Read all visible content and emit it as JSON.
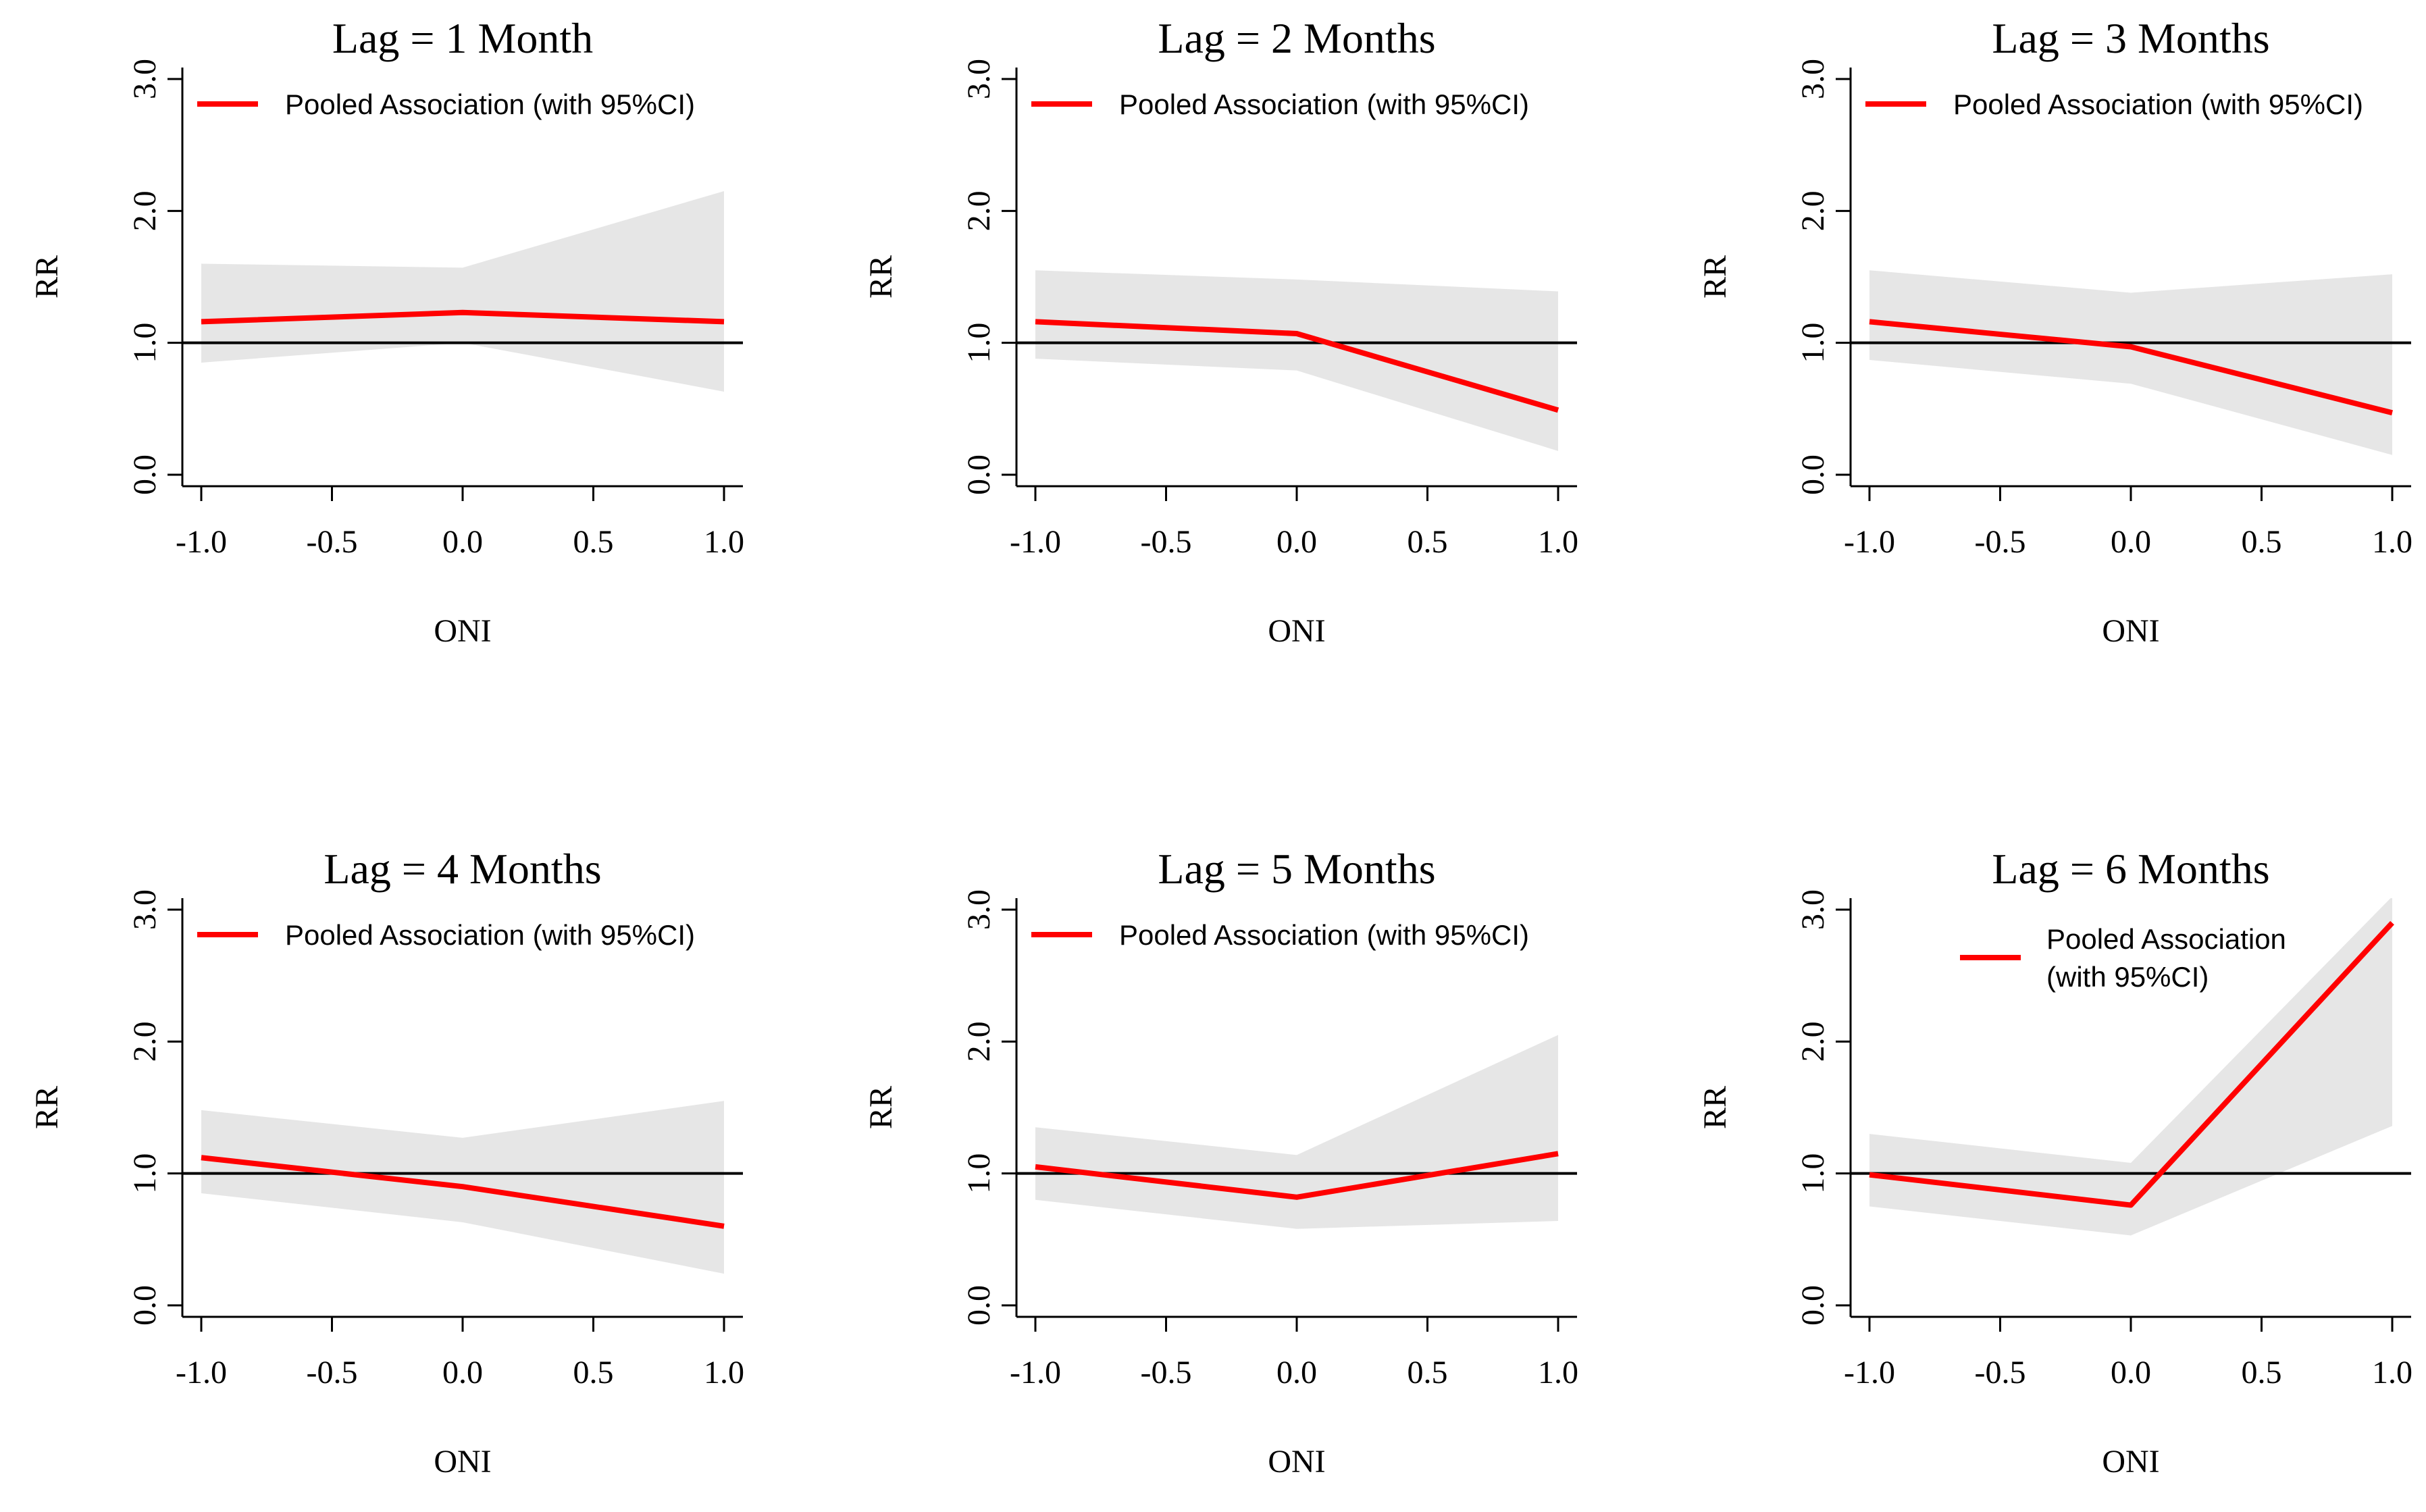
{
  "colors": {
    "series_line": "#ff0000",
    "ci_band": "#e6e6e6",
    "reference_line": "#000000",
    "axis": "#000000"
  },
  "chart_data": [
    {
      "type": "line",
      "title": "Lag =  1 Month",
      "xlabel": "ONI",
      "ylabel": "RR",
      "xlim": [
        -1.0,
        1.0
      ],
      "ylim": [
        0.0,
        3.0
      ],
      "xticks": [
        "-1.0",
        "-0.5",
        "0.0",
        "0.5",
        "1.0"
      ],
      "yticks": [
        "0.0",
        "1.0",
        "2.0",
        "3.0"
      ],
      "legend": [
        "Pooled Association (with 95%CI)"
      ],
      "x": [
        -1.0,
        0.0,
        1.0
      ],
      "rr": [
        1.16,
        1.23,
        1.16
      ],
      "ci_lower": [
        0.85,
        1.0,
        0.63
      ],
      "ci_upper": [
        1.6,
        1.57,
        2.15
      ],
      "reference": 1.0
    },
    {
      "type": "line",
      "title": "Lag =  2 Months",
      "xlabel": "ONI",
      "ylabel": "RR",
      "xlim": [
        -1.0,
        1.0
      ],
      "ylim": [
        0.0,
        3.0
      ],
      "xticks": [
        "-1.0",
        "-0.5",
        "0.0",
        "0.5",
        "1.0"
      ],
      "yticks": [
        "0.0",
        "1.0",
        "2.0",
        "3.0"
      ],
      "legend": [
        "Pooled Association (with 95%CI)"
      ],
      "x": [
        -1.0,
        0.0,
        1.0
      ],
      "rr": [
        1.16,
        1.07,
        0.49
      ],
      "ci_lower": [
        0.88,
        0.79,
        0.18
      ],
      "ci_upper": [
        1.55,
        1.48,
        1.39
      ],
      "reference": 1.0
    },
    {
      "type": "line",
      "title": "Lag =  3 Months",
      "xlabel": "ONI",
      "ylabel": "RR",
      "xlim": [
        -1.0,
        1.0
      ],
      "ylim": [
        0.0,
        3.0
      ],
      "xticks": [
        "-1.0",
        "-0.5",
        "0.0",
        "0.5",
        "1.0"
      ],
      "yticks": [
        "0.0",
        "1.0",
        "2.0",
        "3.0"
      ],
      "legend": [
        "Pooled Association (with 95%CI)"
      ],
      "x": [
        -1.0,
        0.0,
        1.0
      ],
      "rr": [
        1.16,
        0.97,
        0.47
      ],
      "ci_lower": [
        0.87,
        0.69,
        0.15
      ],
      "ci_upper": [
        1.55,
        1.38,
        1.52
      ],
      "reference": 1.0
    },
    {
      "type": "line",
      "title": "Lag =  4 Months",
      "xlabel": "ONI",
      "ylabel": "RR",
      "xlim": [
        -1.0,
        1.0
      ],
      "ylim": [
        0.0,
        3.0
      ],
      "xticks": [
        "-1.0",
        "-0.5",
        "0.0",
        "0.5",
        "1.0"
      ],
      "yticks": [
        "0.0",
        "1.0",
        "2.0",
        "3.0"
      ],
      "legend": [
        "Pooled Association (with 95%CI)"
      ],
      "x": [
        -1.0,
        0.0,
        1.0
      ],
      "rr": [
        1.12,
        0.9,
        0.6
      ],
      "ci_lower": [
        0.85,
        0.63,
        0.24
      ],
      "ci_upper": [
        1.48,
        1.27,
        1.55
      ],
      "reference": 1.0
    },
    {
      "type": "line",
      "title": "Lag =  5 Months",
      "xlabel": "ONI",
      "ylabel": "RR",
      "xlim": [
        -1.0,
        1.0
      ],
      "ylim": [
        0.0,
        3.0
      ],
      "xticks": [
        "-1.0",
        "-0.5",
        "0.0",
        "0.5",
        "1.0"
      ],
      "yticks": [
        "0.0",
        "1.0",
        "2.0",
        "3.0"
      ],
      "legend": [
        "Pooled Association (with 95%CI)"
      ],
      "x": [
        -1.0,
        0.0,
        1.0
      ],
      "rr": [
        1.05,
        0.82,
        1.15
      ],
      "ci_lower": [
        0.8,
        0.58,
        0.64
      ],
      "ci_upper": [
        1.35,
        1.14,
        2.05
      ],
      "reference": 1.0
    },
    {
      "type": "line",
      "title": "Lag =  6 Months",
      "xlabel": "ONI",
      "ylabel": "RR",
      "xlim": [
        -1.0,
        1.0
      ],
      "ylim": [
        0.0,
        3.0
      ],
      "xticks": [
        "-1.0",
        "-0.5",
        "0.0",
        "0.5",
        "1.0"
      ],
      "yticks": [
        "0.0",
        "1.0",
        "2.0",
        "3.0"
      ],
      "legend": [
        "Pooled Association",
        "(with 95%CI)"
      ],
      "x": [
        -1.0,
        0.0,
        1.0
      ],
      "rr": [
        0.99,
        0.76,
        2.9
      ],
      "ci_lower": [
        0.75,
        0.53,
        1.36
      ],
      "ci_upper": [
        1.3,
        1.08,
        3.1
      ],
      "reference": 1.0
    }
  ]
}
